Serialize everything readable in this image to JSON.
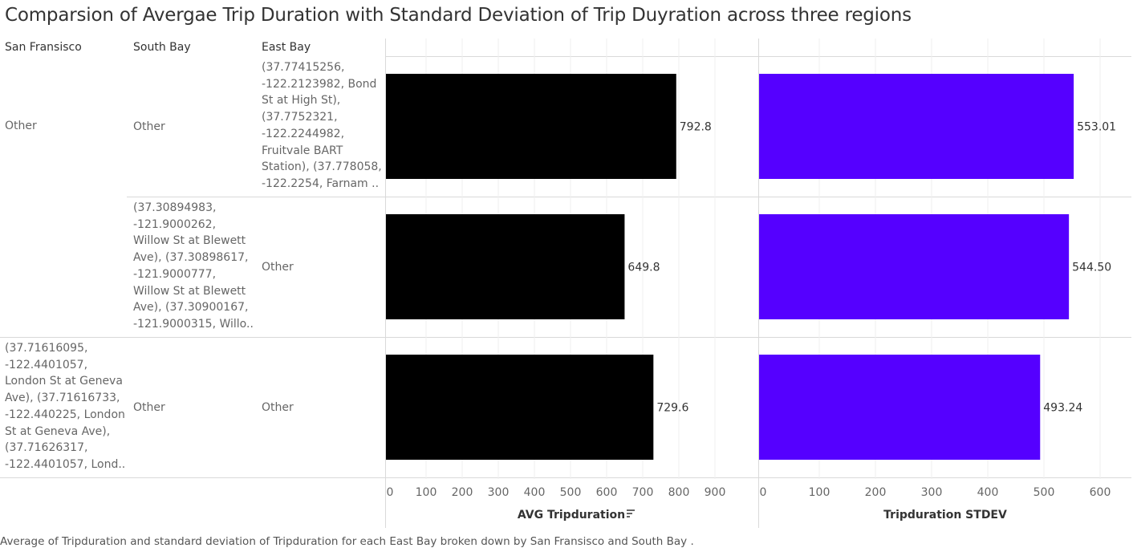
{
  "title": "Comparsion of Avergae Trip Duration with Standard Deviation of Trip Duyration across three regions",
  "caption": "Average of Tripduration and standard deviation of Tripduration for each East Bay  broken down by San Fransisco  and South Bay .",
  "headers": {
    "san_fransisco": "San Fransisco",
    "south_bay": "South Bay",
    "east_bay": "East Bay"
  },
  "rows": [
    {
      "san_fransisco": "Other",
      "south_bay": "Other",
      "east_bay": "(37.77415256,\n-122.2123982, Bond\nSt at High St),\n(37.7752321,\n-122.2244982,\nFruitvale BART\nStation), (37.778058,\n-122.2254, Farnam .."
    },
    {
      "san_fransisco": "",
      "south_bay": "(37.30894983,\n-121.9000262,\nWillow St at Blewett\nAve), (37.30898617,\n-121.9000777,\nWillow St at Blewett\nAve), (37.30900167,\n-121.9000315, Willo..",
      "east_bay": "Other"
    },
    {
      "san_fransisco": "(37.71616095,\n-122.4401057,\nLondon St at Geneva\nAve), (37.71616733,\n-122.440225, London\nSt at Geneva Ave),\n(37.71626317,\n-122.4401057, Lond..",
      "south_bay": "Other",
      "east_bay": "Other"
    }
  ],
  "chart_data": [
    {
      "type": "bar",
      "orientation": "horizontal",
      "xlabel": "AVG Tripduration",
      "sort_icon": "sort-descending-icon",
      "xlim": [
        0,
        900
      ],
      "ticks": [
        0,
        100,
        200,
        300,
        400,
        500,
        600,
        700,
        800,
        900
      ],
      "values": [
        792.8,
        649.8,
        729.6
      ],
      "labels": [
        "792.8",
        "649.8",
        "729.6"
      ],
      "color": "#000000"
    },
    {
      "type": "bar",
      "orientation": "horizontal",
      "xlabel": "Tripduration STDEV",
      "xlim": [
        0,
        650
      ],
      "ticks": [
        0,
        100,
        200,
        300,
        400,
        500,
        600
      ],
      "values": [
        553.01,
        544.5,
        493.24
      ],
      "labels": [
        "553.01",
        "544.50",
        "493.24"
      ],
      "color": "#5500ff"
    }
  ]
}
